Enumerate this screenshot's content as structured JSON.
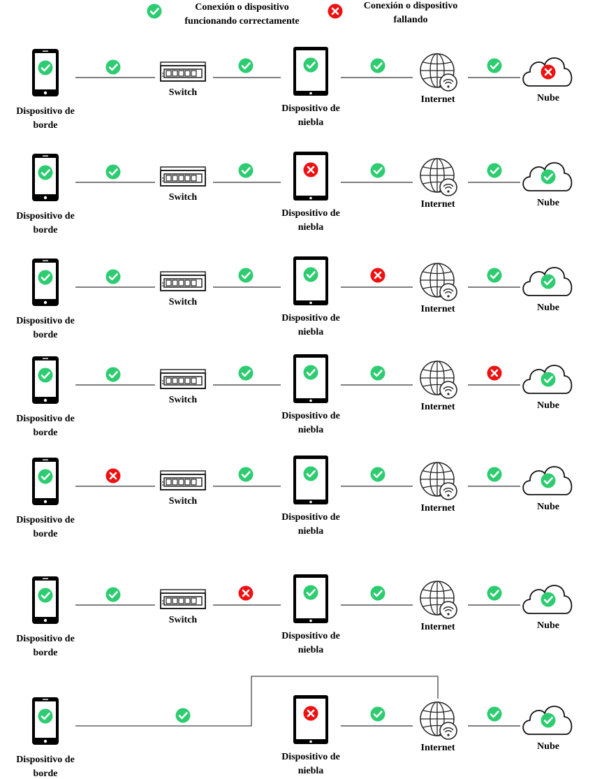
{
  "legend": {
    "ok": "Conexión o dispositivo funcionando correctamente",
    "ok_line1": "Conexión o dispositivo",
    "ok_line2": "funcionando correctamente",
    "fail": "Conexión o dispositivo fallando",
    "fail_line1": "Conexión o dispositivo",
    "fail_line2": "fallando"
  },
  "labels": {
    "edge_line1": "Dispositivo de",
    "edge_line2": "borde",
    "switch": "Switch",
    "fog_line1": "Dispositivo de",
    "fog_line2": "niebla",
    "internet": "Internet",
    "cloud": "Nube"
  },
  "colors": {
    "ok": "#2ecc71",
    "fail": "#ee1111",
    "line": "#555555"
  },
  "scenarios": [
    {
      "edge": "ok",
      "edge_switch": "ok",
      "switch": "ok",
      "switch_fog": "ok",
      "fog": "ok",
      "fog_internet": "ok",
      "internet_cloud": "ok",
      "cloud": "fail"
    },
    {
      "edge": "ok",
      "edge_switch": "ok",
      "switch": "ok",
      "switch_fog": "ok",
      "fog": "fail",
      "fog_internet": "ok",
      "internet_cloud": "ok",
      "cloud": "ok"
    },
    {
      "edge": "ok",
      "edge_switch": "ok",
      "switch": "ok",
      "switch_fog": "ok",
      "fog": "ok",
      "fog_internet": "fail",
      "internet_cloud": "ok",
      "cloud": "ok"
    },
    {
      "edge": "ok",
      "edge_switch": "ok",
      "switch": "ok",
      "switch_fog": "ok",
      "fog": "ok",
      "fog_internet": "ok",
      "internet_cloud": "fail",
      "cloud": "ok"
    },
    {
      "edge": "ok",
      "edge_switch": "fail",
      "switch": "ok",
      "switch_fog": "ok",
      "fog": "ok",
      "fog_internet": "ok",
      "internet_cloud": "ok",
      "cloud": "ok"
    },
    {
      "edge": "ok",
      "edge_switch": "ok",
      "switch": "ok",
      "switch_fog": "fail",
      "fog": "ok",
      "fog_internet": "ok",
      "internet_cloud": "ok",
      "cloud": "ok"
    },
    {
      "edge": "ok",
      "edge_internet_bypass": "ok",
      "fog": "fail",
      "fog_internet": "ok",
      "internet_cloud": "ok",
      "cloud": "ok"
    }
  ]
}
